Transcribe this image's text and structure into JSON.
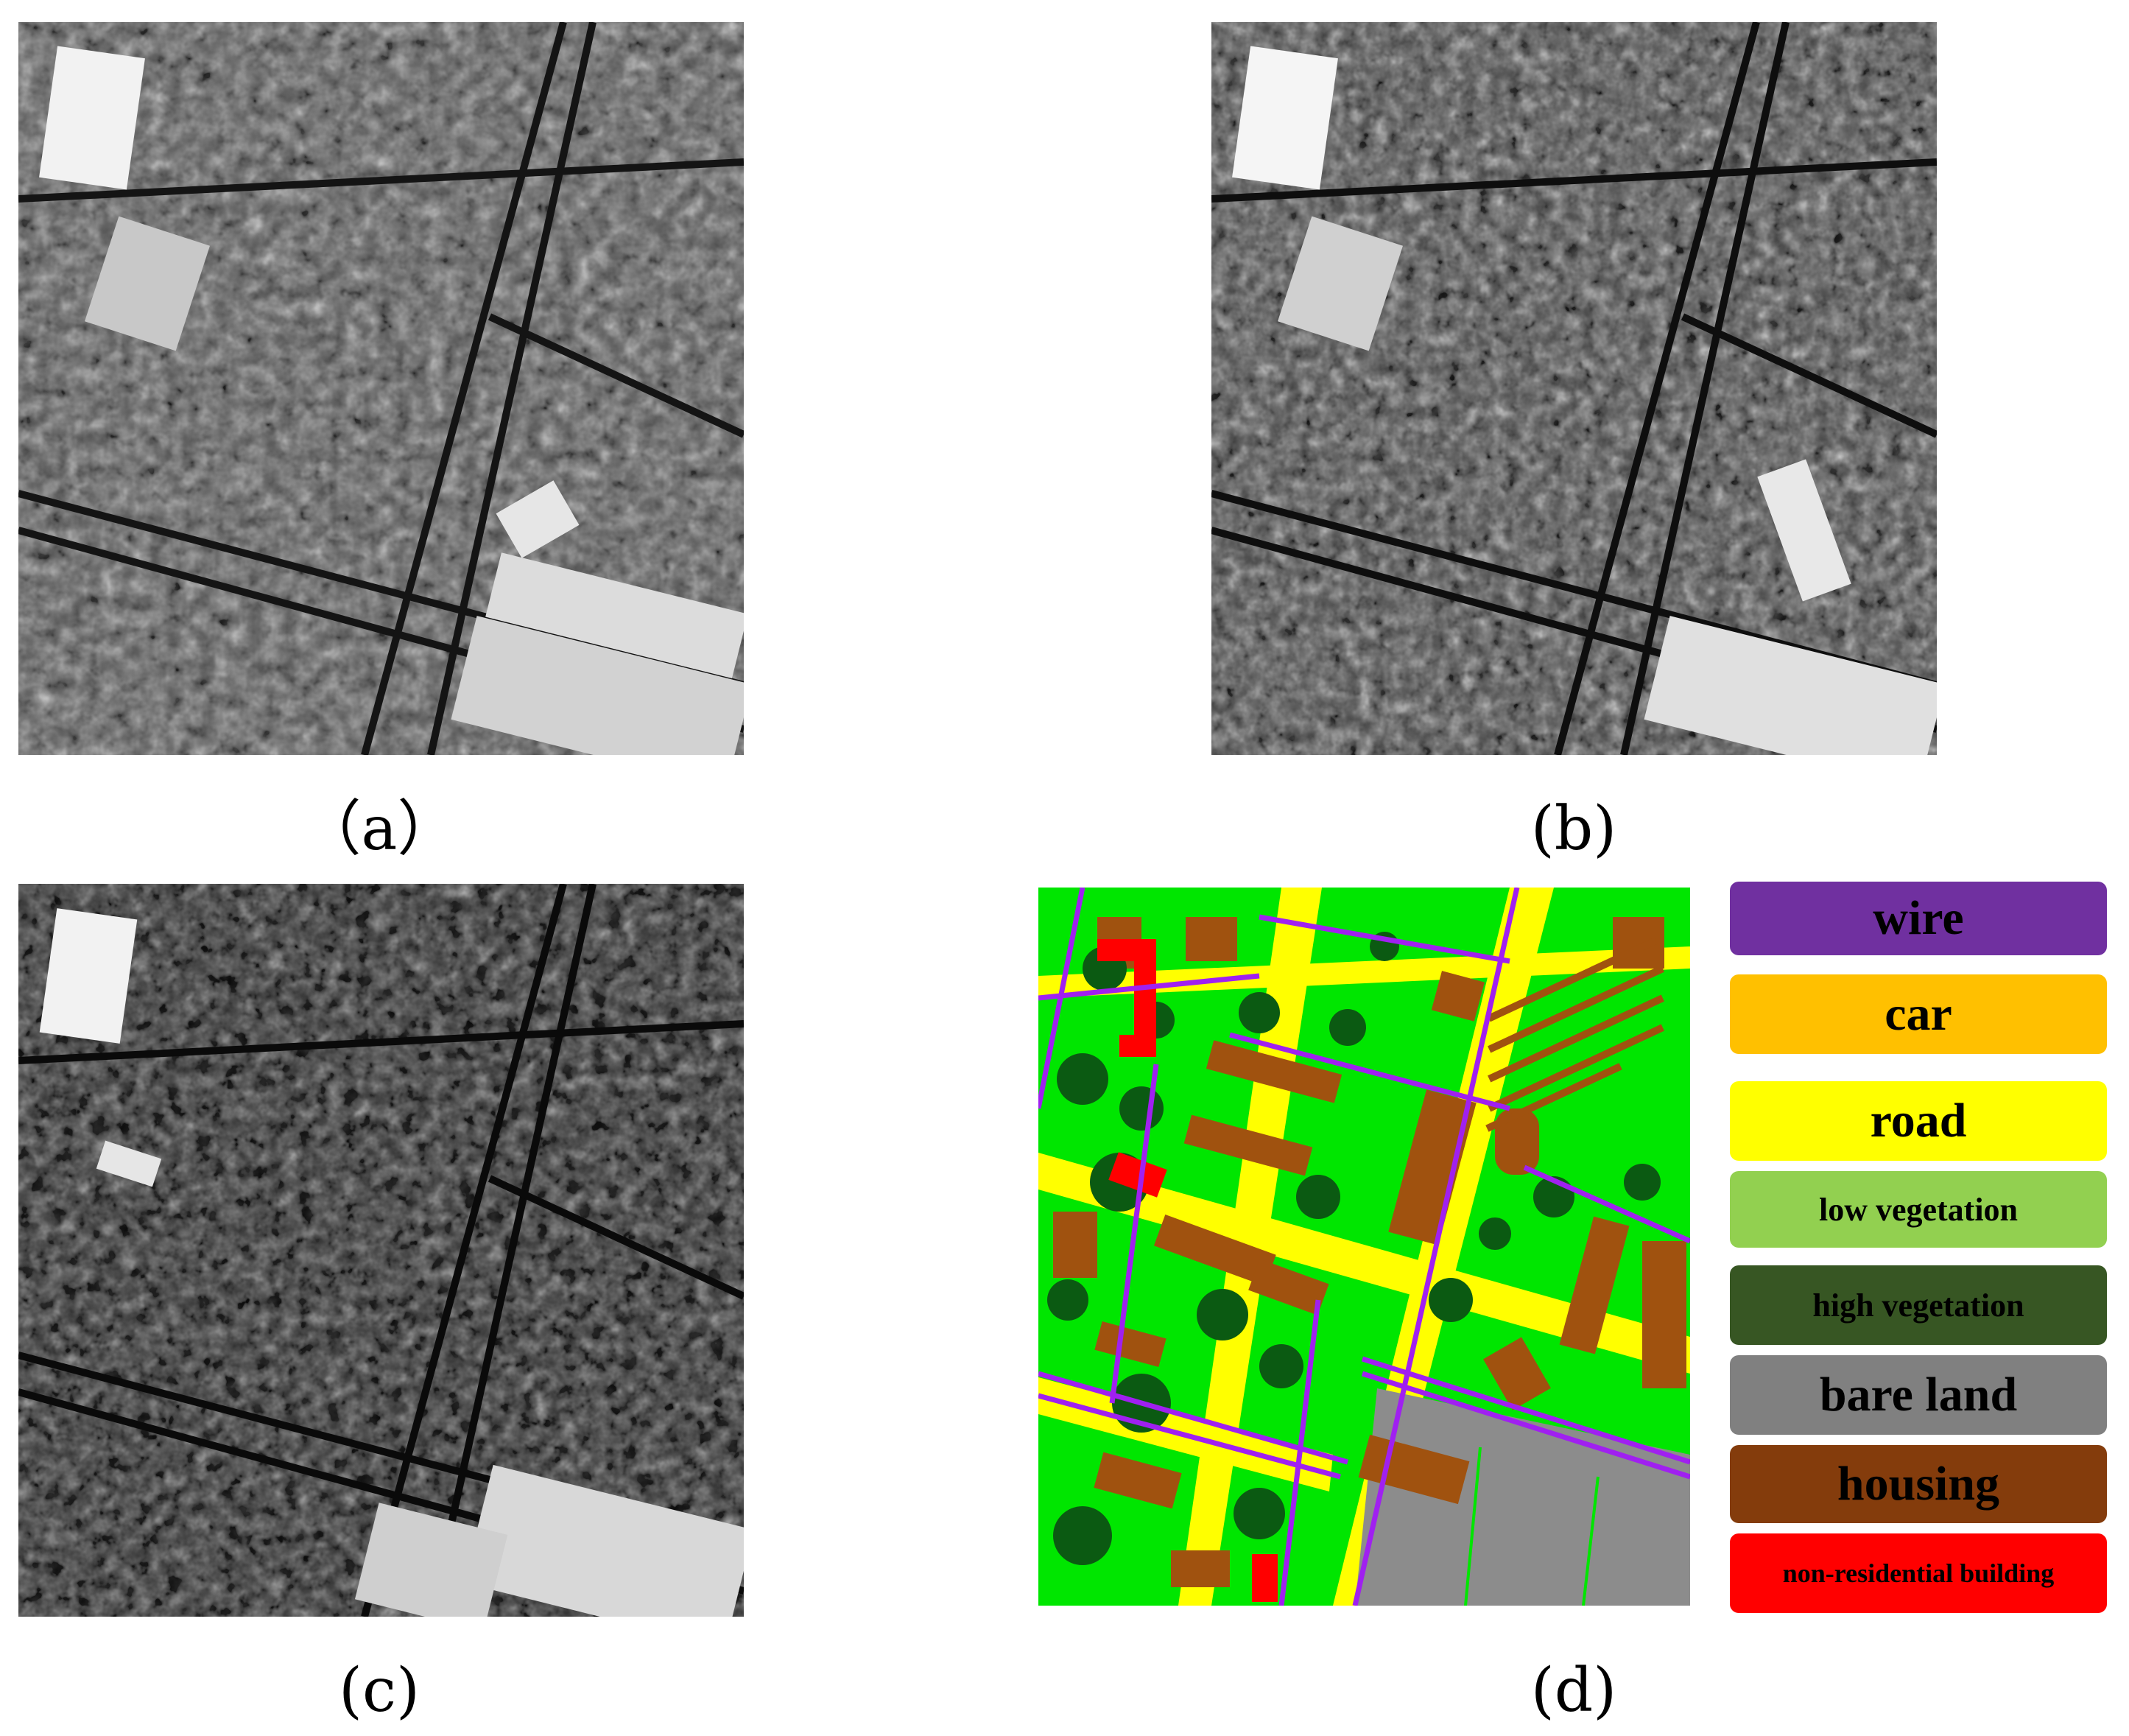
{
  "captions": [
    "（a）",
    "(b)",
    "(c)",
    "(d)"
  ],
  "legend": [
    {
      "label": "wire",
      "color": "#7030a0",
      "text_color": "#000000"
    },
    {
      "label": "car",
      "color": "#ffc000",
      "text_color": "#000000"
    },
    {
      "label": "road",
      "color": "#ffff00",
      "text_color": "#000000"
    },
    {
      "label": "low vegetation",
      "color": "#92d050",
      "text_color": "#000000"
    },
    {
      "label": "high vegetation",
      "color": "#375623",
      "text_color": "#000000"
    },
    {
      "label": "bare land",
      "color": "#808080",
      "text_color": "#000000"
    },
    {
      "label": "housing",
      "color": "#843c0c",
      "text_color": "#000000"
    },
    {
      "label": "non-residential building",
      "color": "#ff0000",
      "text_color": "#000000"
    }
  ],
  "map_colors": {
    "low_vegetation_bright": "#00e600",
    "high_vegetation": "#0b5a12",
    "housing": "#a0520f",
    "road": "#ffff00",
    "wire": "#a020f0",
    "bare_land": "#8c8c8c",
    "non_residential": "#ff0000",
    "car": "#ffb000"
  }
}
